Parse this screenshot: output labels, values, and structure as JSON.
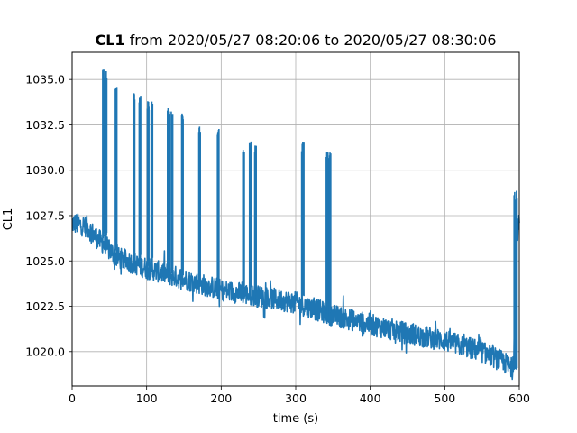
{
  "chart_data": {
    "type": "line",
    "title_bold": "CL1",
    "title_rest": " from 2020/05/27 08:20:06 to 2020/05/27 08:30:06",
    "xlabel": "time (s)",
    "ylabel": "CL1",
    "xlim": [
      0,
      600
    ],
    "ylim": [
      1018.1,
      1036.5
    ],
    "x_ticks": [
      0,
      100,
      200,
      300,
      400,
      500,
      600
    ],
    "y_ticks": [
      1020.0,
      1022.5,
      1025.0,
      1027.5,
      1030.0,
      1032.5,
      1035.0
    ],
    "x_tick_labels": [
      "0",
      "100",
      "200",
      "300",
      "400",
      "500",
      "600"
    ],
    "y_tick_labels": [
      "1020.0",
      "1022.5",
      "1025.0",
      "1027.5",
      "1030.0",
      "1032.5",
      "1035.0"
    ],
    "grid": true,
    "series_color": "#1f77b4",
    "baseline": {
      "x": [
        0,
        20,
        30,
        40,
        60,
        100,
        150,
        200,
        300,
        350,
        400,
        450,
        500,
        550,
        580,
        592,
        596,
        600
      ],
      "y": [
        1027.1,
        1026.9,
        1026.4,
        1026.0,
        1025.2,
        1024.6,
        1024.0,
        1023.4,
        1022.7,
        1022.0,
        1021.5,
        1021.0,
        1020.6,
        1020.0,
        1019.4,
        1019.0,
        1026.5,
        1027.0
      ]
    },
    "noise_band": 0.6,
    "spikes": [
      {
        "x": [
          41,
          43
        ],
        "top": 1035.6,
        "base": 1026.0
      },
      {
        "x": [
          45,
          46.5
        ],
        "top": 1035.6,
        "base": 1026.0
      },
      {
        "x": [
          58,
          60
        ],
        "top": 1034.7,
        "base": 1025.3
      },
      {
        "x": [
          82,
          84
        ],
        "top": 1034.3,
        "base": 1024.9
      },
      {
        "x": [
          90,
          92
        ],
        "top": 1034.2,
        "base": 1024.8
      },
      {
        "x": [
          101,
          103
        ],
        "top": 1033.9,
        "base": 1024.7
      },
      {
        "x": [
          106,
          108
        ],
        "top": 1033.9,
        "base": 1024.7
      },
      {
        "x": [
          128,
          131
        ],
        "top": 1033.6,
        "base": 1024.4
      },
      {
        "x": [
          133,
          135
        ],
        "top": 1033.4,
        "base": 1024.3
      },
      {
        "x": [
          147,
          149
        ],
        "top": 1033.4,
        "base": 1024.0
      },
      {
        "x": [
          170,
          172
        ],
        "top": 1032.6,
        "base": 1023.7
      },
      {
        "x": [
          195,
          197
        ],
        "top": 1032.4,
        "base": 1023.4
      },
      {
        "x": [
          229,
          231
        ],
        "top": 1031.3,
        "base": 1023.1
      },
      {
        "x": [
          238,
          240
        ],
        "top": 1031.6,
        "base": 1023.0
      },
      {
        "x": [
          245,
          247
        ],
        "top": 1031.5,
        "base": 1022.9
      },
      {
        "x": [
          308,
          311
        ],
        "top": 1031.6,
        "base": 1022.6
      },
      {
        "x": [
          341,
          344
        ],
        "top": 1031.0,
        "base": 1022.1
      },
      {
        "x": [
          345,
          347
        ],
        "top": 1031.0,
        "base": 1022.0
      },
      {
        "x": [
          593,
          597
        ],
        "top": 1028.9,
        "base": 1019.0
      }
    ]
  }
}
